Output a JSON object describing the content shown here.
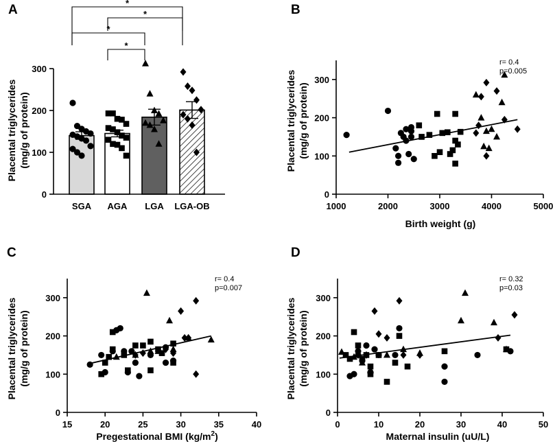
{
  "chart_data": [
    {
      "panel": "A",
      "type": "bar",
      "ylabel_line1": "Placental triglycerides",
      "ylabel_line2": "(mg/g of protein)",
      "ylim": [
        0,
        300
      ],
      "yticks": [
        "0",
        "100",
        "200",
        "300"
      ],
      "categories": [
        "SGA",
        "AGA",
        "LGA",
        "LGA-OB"
      ],
      "means": [
        140,
        145,
        184,
        201
      ],
      "sem": [
        9,
        8,
        19,
        20
      ],
      "fills": [
        "#d9d9d9",
        "#ffffff",
        "#606060",
        "hatch"
      ],
      "markers": [
        "circle",
        "square",
        "triangle",
        "diamond"
      ],
      "points": [
        [
          218,
          163,
          156,
          150,
          145,
          142,
          138,
          133,
          128,
          115,
          108,
          100,
          92
        ],
        [
          193,
          193,
          180,
          178,
          168,
          158,
          155,
          148,
          140,
          135,
          130,
          120,
          118,
          110,
          92
        ],
        [
          312,
          240,
          200,
          192,
          176,
          170,
          165,
          155,
          120
        ],
        [
          292,
          258,
          248,
          225,
          202,
          190,
          180,
          165,
          100
        ]
      ],
      "significance": [
        {
          "from": "SGA",
          "to": "LGA-OB",
          "label": "*"
        },
        {
          "from": "AGA",
          "to": "LGA-OB",
          "label": "*"
        },
        {
          "from": "SGA",
          "to": "LGA",
          "label": "*"
        },
        {
          "from": "AGA",
          "to": "LGA",
          "label": "*"
        }
      ]
    },
    {
      "panel": "B",
      "type": "scatter",
      "xlabel": "Birth weight (g)",
      "ylabel_line1": "Placental triglycerides",
      "ylabel_line2": "(mg/g of protein)",
      "xlim": [
        1000,
        5000
      ],
      "ylim": [
        0,
        350
      ],
      "xticks": [
        "1000",
        "2000",
        "3000",
        "4000",
        "5000"
      ],
      "yticks": [
        "0",
        "100",
        "200",
        "300"
      ],
      "annotation_r": "r= 0.4",
      "annotation_p": "p=0.005",
      "fit": {
        "x": [
          1250,
          4500
        ],
        "y": [
          110,
          195
        ]
      },
      "series": [
        {
          "marker": "circle",
          "points": [
            [
              1200,
              155
            ],
            [
              2000,
              218
            ],
            [
              2150,
              120
            ],
            [
              2200,
              100
            ],
            [
              2200,
              82
            ],
            [
              2250,
              160
            ],
            [
              2300,
              150
            ],
            [
              2350,
              170
            ],
            [
              2350,
              140
            ],
            [
              2400,
              105
            ],
            [
              2450,
              175
            ],
            [
              2450,
              150
            ],
            [
              2500,
              92
            ],
            [
              2450,
              165
            ]
          ]
        },
        {
          "marker": "square",
          "points": [
            [
              2600,
              180
            ],
            [
              2650,
              150
            ],
            [
              2800,
              155
            ],
            [
              2900,
              100
            ],
            [
              2950,
              210
            ],
            [
              3000,
              110
            ],
            [
              3050,
              160
            ],
            [
              3150,
              162
            ],
            [
              3200,
              105
            ],
            [
              3250,
              115
            ],
            [
              3300,
              210
            ],
            [
              3300,
              140
            ],
            [
              3350,
              130
            ],
            [
              3300,
              80
            ],
            [
              3400,
              163
            ]
          ]
        },
        {
          "marker": "triangle",
          "points": [
            [
              3700,
              260
            ],
            [
              3800,
              200
            ],
            [
              3850,
              125
            ],
            [
              3900,
              165
            ],
            [
              3950,
              120
            ],
            [
              4000,
              170
            ],
            [
              4100,
              150
            ],
            [
              4200,
              240
            ],
            [
              4250,
              312
            ]
          ]
        },
        {
          "marker": "diamond",
          "points": [
            [
              3700,
              160
            ],
            [
              3750,
              180
            ],
            [
              3800,
              255
            ],
            [
              3900,
              292
            ],
            [
              3900,
              100
            ],
            [
              4100,
              270
            ],
            [
              4250,
              195
            ],
            [
              4500,
              170
            ]
          ]
        }
      ]
    },
    {
      "panel": "C",
      "type": "scatter",
      "xlabel": "Pregestational  BMI (kg/m",
      "xlabel_sup": "2",
      "xlabel_end": ")",
      "ylabel_line1": "Placental triglycerides",
      "ylabel_line2": "(mg/g of protein)",
      "xlim": [
        15,
        40
      ],
      "ylim": [
        0,
        350
      ],
      "xticks": [
        "15",
        "20",
        "25",
        "30",
        "35",
        "40"
      ],
      "yticks": [
        "0",
        "100",
        "200",
        "300"
      ],
      "annotation_r": "r= 0.4",
      "annotation_p": "p=0.007",
      "fit": {
        "x": [
          18,
          34
        ],
        "y": [
          128,
          200
        ]
      },
      "series": [
        {
          "marker": "circle",
          "points": [
            [
              18,
              125
            ],
            [
              19.5,
              150
            ],
            [
              20,
              105
            ],
            [
              21,
              160
            ],
            [
              21.5,
              215
            ],
            [
              22,
              220
            ],
            [
              22.5,
              160
            ],
            [
              23,
              105
            ],
            [
              23.5,
              160
            ],
            [
              24,
              130
            ],
            [
              24.5,
              95
            ],
            [
              26,
              150
            ],
            [
              28,
              130
            ],
            [
              28,
              170
            ],
            [
              29,
              135
            ]
          ]
        },
        {
          "marker": "square",
          "points": [
            [
              19.5,
              100
            ],
            [
              20,
              130
            ],
            [
              20.5,
              145
            ],
            [
              21,
              210
            ],
            [
              21,
              165
            ],
            [
              22.5,
              150
            ],
            [
              23,
              110
            ],
            [
              24,
              175
            ],
            [
              25,
              175
            ],
            [
              26,
              185
            ],
            [
              26,
              110
            ],
            [
              27,
              165
            ],
            [
              27.5,
              155
            ],
            [
              29,
              130
            ],
            [
              29,
              180
            ]
          ]
        },
        {
          "marker": "triangle",
          "points": [
            [
              21.5,
              145
            ],
            [
              24,
              150
            ],
            [
              25.5,
              312
            ],
            [
              26,
              160
            ],
            [
              27,
              160
            ],
            [
              28.5,
              240
            ],
            [
              29,
              165
            ],
            [
              31,
              195
            ],
            [
              34,
              190
            ]
          ]
        },
        {
          "marker": "diamond",
          "points": [
            [
              24,
              150
            ],
            [
              25,
              155
            ],
            [
              28,
              165
            ],
            [
              29,
              155
            ],
            [
              30,
              265
            ],
            [
              30.5,
              195
            ],
            [
              31,
              195
            ],
            [
              32,
              292
            ],
            [
              32,
              100
            ]
          ]
        }
      ]
    },
    {
      "panel": "D",
      "type": "scatter",
      "xlabel": "Maternal insulin (uU/L)",
      "ylabel_line1": "Placental triglycerides",
      "ylabel_line2": "(mg/g of protein)",
      "xlim": [
        0,
        50
      ],
      "ylim": [
        0,
        350
      ],
      "xticks": [
        "0",
        "10",
        "20",
        "30",
        "40",
        "50"
      ],
      "yticks": [
        "0",
        "100",
        "200",
        "300"
      ],
      "annotation_r": "r= 0.32",
      "annotation_p": "p=0.03",
      "fit": {
        "x": [
          0.5,
          42
        ],
        "y": [
          142,
          202
        ]
      },
      "series": [
        {
          "marker": "circle",
          "points": [
            [
              3,
              95
            ],
            [
              4,
              100
            ],
            [
              5,
              160
            ],
            [
              5,
              150
            ],
            [
              6,
              135
            ],
            [
              7,
              175
            ],
            [
              8,
              105
            ],
            [
              9,
              165
            ],
            [
              10,
              150
            ],
            [
              14,
              150
            ],
            [
              15,
              220
            ],
            [
              26,
              80
            ],
            [
              26,
              120
            ],
            [
              34,
              150
            ],
            [
              42,
              160
            ]
          ]
        },
        {
          "marker": "square",
          "points": [
            [
              2,
              150
            ],
            [
              3,
              140
            ],
            [
              4,
              210
            ],
            [
              5,
              175
            ],
            [
              6,
              140
            ],
            [
              7,
              150
            ],
            [
              8,
              120
            ],
            [
              8,
              100
            ],
            [
              10,
              150
            ],
            [
              12,
              80
            ],
            [
              14,
              130
            ],
            [
              15,
              200
            ],
            [
              17,
              120
            ],
            [
              26,
              160
            ],
            [
              41,
              165
            ]
          ]
        },
        {
          "marker": "triangle",
          "points": [
            [
              1,
              158
            ],
            [
              4,
              145
            ],
            [
              6,
              130
            ],
            [
              8,
              110
            ],
            [
              12,
              150
            ],
            [
              16,
              165
            ],
            [
              20,
              155
            ],
            [
              30,
              240
            ],
            [
              31,
              312
            ],
            [
              38,
              235
            ],
            [
              41,
              165
            ]
          ]
        },
        {
          "marker": "diamond",
          "points": [
            [
              5,
              150
            ],
            [
              7,
              150
            ],
            [
              9,
              265
            ],
            [
              10,
              205
            ],
            [
              12,
              195
            ],
            [
              15,
              292
            ],
            [
              16,
              150
            ],
            [
              20,
              150
            ],
            [
              39,
              195
            ],
            [
              43,
              255
            ]
          ]
        }
      ]
    }
  ]
}
